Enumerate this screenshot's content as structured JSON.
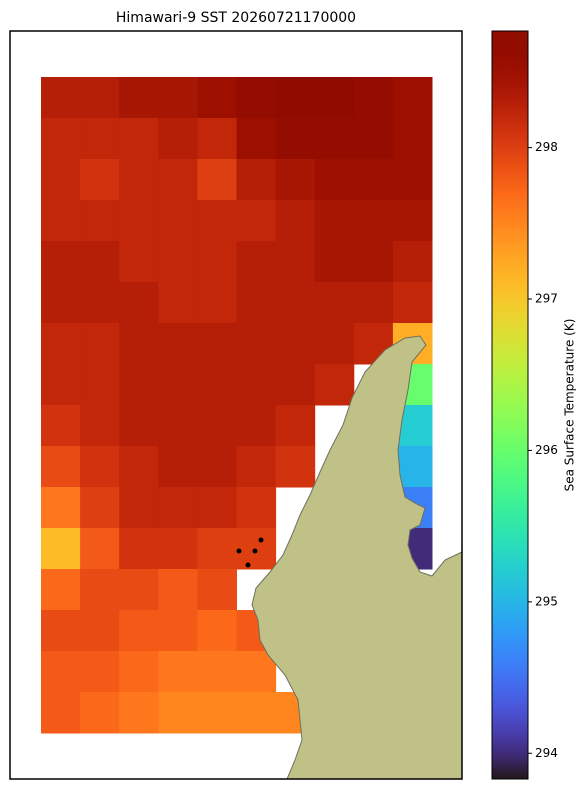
{
  "chart_data": {
    "type": "heatmap",
    "title": "Himawari-9 SST 20260721170000",
    "colorbar_label": "Sea Surface Temperature (K)",
    "colormap": "turbo",
    "clim": [
      293.83,
      298.77
    ],
    "colorbar_ticks": [
      294,
      295,
      296,
      297,
      298
    ],
    "values": [
      [
        298.3,
        298.3,
        298.4,
        298.4,
        298.5,
        298.6,
        298.7,
        298.7,
        298.6,
        298.5
      ],
      [
        298.2,
        298.2,
        298.2,
        298.3,
        298.2,
        298.5,
        298.6,
        298.6,
        298.6,
        298.5
      ],
      [
        298.2,
        298.1,
        298.2,
        298.2,
        298.0,
        298.3,
        298.4,
        298.5,
        298.5,
        298.5
      ],
      [
        298.2,
        298.2,
        298.2,
        298.2,
        298.2,
        298.2,
        298.3,
        298.4,
        298.4,
        298.4
      ],
      [
        298.3,
        298.3,
        298.2,
        298.2,
        298.2,
        298.3,
        298.3,
        298.4,
        298.4,
        298.3
      ],
      [
        298.3,
        298.3,
        298.3,
        298.2,
        298.2,
        298.3,
        298.3,
        298.3,
        298.3,
        298.2
      ],
      [
        298.2,
        298.2,
        298.3,
        298.3,
        298.3,
        298.3,
        298.3,
        298.3,
        298.2,
        297.2
      ],
      [
        298.2,
        298.2,
        298.3,
        298.3,
        298.3,
        298.3,
        298.3,
        298.2,
        null,
        296.0
      ],
      [
        298.1,
        298.2,
        298.3,
        298.3,
        298.3,
        298.3,
        298.2,
        null,
        null,
        295.2
      ],
      [
        297.9,
        298.1,
        298.2,
        298.3,
        298.3,
        298.2,
        298.1,
        null,
        null,
        295.0
      ],
      [
        297.6,
        298.0,
        298.2,
        298.2,
        298.2,
        298.1,
        null,
        null,
        null,
        294.6
      ],
      [
        297.1,
        297.8,
        298.1,
        298.1,
        298.0,
        298.0,
        null,
        null,
        null,
        294.0
      ],
      [
        297.7,
        297.9,
        297.9,
        297.8,
        297.9,
        null,
        null,
        null,
        null,
        null
      ],
      [
        297.9,
        297.9,
        297.8,
        297.8,
        297.7,
        297.8,
        null,
        null,
        null,
        null
      ],
      [
        297.8,
        297.8,
        297.7,
        297.6,
        297.6,
        297.6,
        null,
        null,
        null,
        null
      ],
      [
        297.8,
        297.7,
        297.6,
        297.5,
        297.5,
        297.5,
        297.5,
        null,
        null,
        null
      ]
    ]
  }
}
